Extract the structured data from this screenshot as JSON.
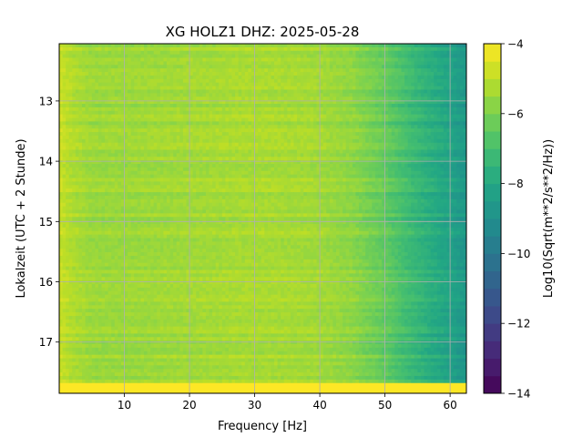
{
  "chart_data": {
    "type": "heatmap",
    "title": "XG HOLZ1  DHZ: 2025-05-28",
    "xlabel": "Frequency [Hz]",
    "ylabel": "Lokalzeit (UTC + 2 Stunde)",
    "colorbar_label": "Log10(Sqrt(m**2/s**2/Hz))",
    "colormap": "viridis",
    "grid": true,
    "xlim": [
      0,
      62.5
    ],
    "ylim": [
      17.85,
      12.05
    ],
    "clim": [
      -14,
      -4
    ],
    "x_ticks": [
      10,
      20,
      30,
      40,
      50,
      60
    ],
    "x_tick_labels": [
      "10",
      "20",
      "30",
      "40",
      "50",
      "60"
    ],
    "y_ticks": [
      13,
      14,
      15,
      16,
      17
    ],
    "y_tick_labels": [
      "13",
      "14",
      "15",
      "16",
      "17"
    ],
    "colorbar_ticks": [
      -4,
      -6,
      -8,
      -10,
      -12,
      -14
    ],
    "colorbar_tick_labels": [
      "−4",
      "−6",
      "−8",
      "−10",
      "−12",
      "−14"
    ],
    "approx_spectrum_profile": {
      "frequency_hz": [
        0,
        2,
        5,
        10,
        20,
        30,
        40,
        45,
        50,
        55,
        60,
        62.5
      ],
      "log10_amplitude": [
        -4.8,
        -5.2,
        -5.5,
        -5.5,
        -5.4,
        -5.3,
        -5.4,
        -5.7,
        -6.4,
        -7.4,
        -8.2,
        -8.7
      ]
    },
    "saturated_bottom_row": {
      "time_from": 17.68,
      "time_to": 17.85,
      "log10_amplitude": -4
    }
  }
}
